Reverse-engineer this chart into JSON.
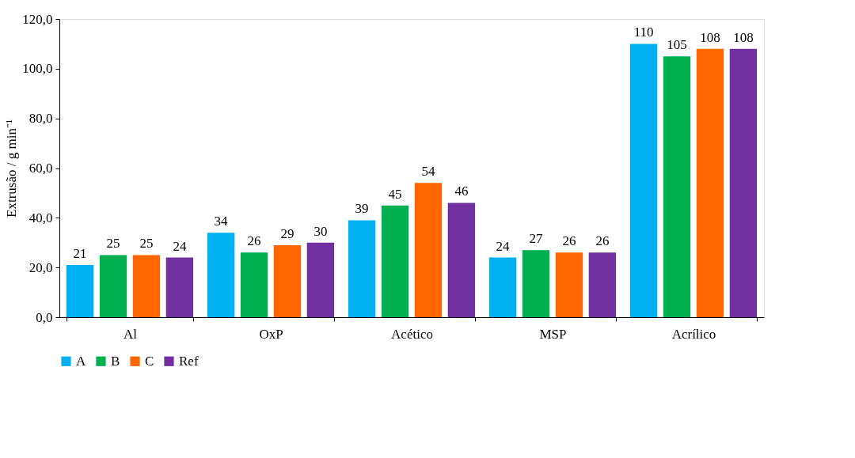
{
  "chart_data": {
    "type": "bar",
    "ylabel": "Extrusão / g min⁻¹",
    "categories": [
      "Al",
      "OxP",
      "Acético",
      "MSP",
      "Acrílico"
    ],
    "series": [
      {
        "name": "A",
        "color": "#00b0f0",
        "values": [
          21,
          34,
          39,
          24,
          110
        ]
      },
      {
        "name": "B",
        "color": "#00b050",
        "values": [
          25,
          26,
          45,
          27,
          105
        ]
      },
      {
        "name": "C",
        "color": "#ff6600",
        "values": [
          25,
          29,
          54,
          26,
          108
        ]
      },
      {
        "name": "Ref",
        "color": "#7030a0",
        "values": [
          24,
          30,
          46,
          26,
          108
        ]
      }
    ],
    "ylim": [
      0,
      120
    ],
    "yticks": [
      {
        "value": 0,
        "label": "0,0"
      },
      {
        "value": 20,
        "label": "20,0"
      },
      {
        "value": 40,
        "label": "40,0"
      },
      {
        "value": 60,
        "label": "60,0"
      },
      {
        "value": 80,
        "label": "80,0"
      },
      {
        "value": 100,
        "label": "100,0"
      },
      {
        "value": 120,
        "label": "120,0"
      }
    ],
    "data_labels": true,
    "grid": false,
    "legend": "bottom"
  }
}
